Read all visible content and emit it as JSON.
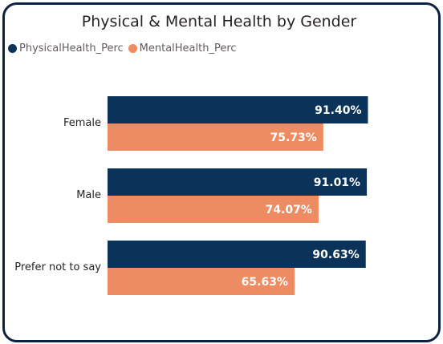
{
  "chart_data": {
    "type": "bar",
    "orientation": "horizontal",
    "title": "Physical & Mental Health by Gender",
    "categories": [
      "Female",
      "Male",
      "Prefer not to say"
    ],
    "series": [
      {
        "name": "PhysicalHealth_Perc",
        "color": "#0b3359",
        "values": [
          91.4,
          91.01,
          90.63
        ],
        "labels": [
          "91.40%",
          "91.01%",
          "90.63%"
        ]
      },
      {
        "name": "MentalHealth_Perc",
        "color": "#ed8c62",
        "values": [
          75.73,
          74.07,
          65.63
        ],
        "labels": [
          "75.73%",
          "74.07%",
          "65.63%"
        ]
      }
    ],
    "xlim": [
      0,
      100
    ],
    "legend_position": "top-left",
    "grid": false
  }
}
